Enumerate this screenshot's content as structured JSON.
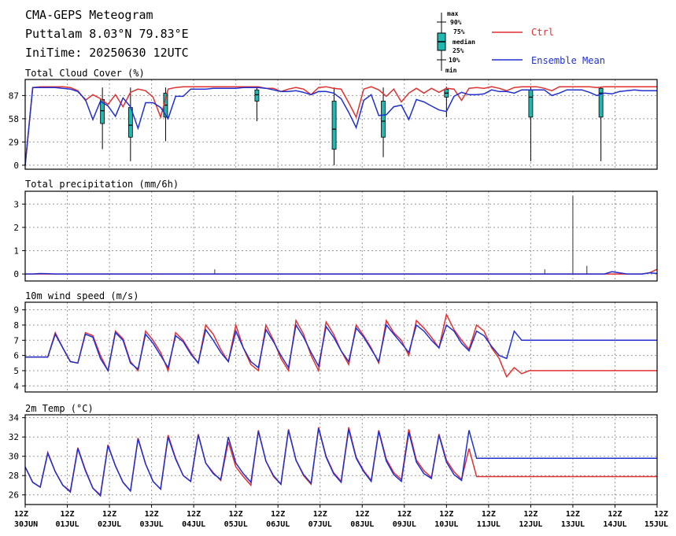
{
  "header": {
    "title": "CMA-GEPS Meteogram",
    "location": "Puttalam 8.03°N 79.83°E",
    "init_time": "IniTime: 20250630 12UTC"
  },
  "legend": {
    "box_labels": [
      "max",
      "90%",
      "75%",
      "median",
      "25%",
      "10%",
      "min"
    ],
    "ctrl_label": "Ctrl",
    "mean_label": "Ensemble Mean",
    "ctrl_color": "#e03030",
    "mean_color": "#2030d0",
    "box_color": "#20b8b0"
  },
  "chart_data": [
    {
      "type": "line",
      "title": "Total Cloud Cover (%)",
      "x_range": [
        0,
        90
      ],
      "ylim": [
        -5,
        107
      ],
      "yticks": [
        0,
        29,
        58,
        87
      ],
      "grid": true,
      "series": [
        {
          "name": "Ctrl",
          "values": [
            0,
            97,
            98,
            98,
            98,
            98,
            97,
            93,
            81,
            88,
            83,
            76,
            88,
            73,
            91,
            95,
            93,
            85,
            60,
            95,
            97,
            98,
            98,
            98,
            98,
            98,
            98,
            98,
            98,
            98,
            98,
            98,
            96,
            96,
            92,
            95,
            97,
            95,
            88,
            97,
            98,
            96,
            95,
            78,
            60,
            95,
            98,
            94,
            86,
            95,
            79,
            90,
            96,
            90,
            96,
            91,
            96,
            95,
            81,
            96,
            97,
            96,
            98,
            96,
            93,
            97,
            98,
            98,
            98,
            96,
            93,
            98,
            98,
            98,
            98,
            98,
            97,
            98,
            98,
            98,
            98,
            98,
            98,
            98,
            98
          ]
        },
        {
          "name": "Ensemble Mean",
          "values": [
            0,
            97,
            97,
            97,
            97,
            96,
            95,
            92,
            82,
            57,
            80,
            74,
            61,
            84,
            73,
            46,
            78,
            78,
            72,
            58,
            86,
            86,
            95,
            95,
            95,
            96,
            96,
            96,
            96,
            97,
            97,
            97,
            96,
            94,
            92,
            92,
            93,
            91,
            88,
            92,
            92,
            90,
            83,
            66,
            47,
            81,
            88,
            62,
            63,
            73,
            75,
            57,
            82,
            79,
            74,
            69,
            67,
            86,
            91,
            88,
            88,
            89,
            94,
            92,
            92,
            90,
            94,
            94,
            94,
            94,
            87,
            90,
            94,
            94,
            94,
            91,
            87,
            90,
            89,
            92,
            93,
            94,
            93,
            93,
            93
          ]
        }
      ],
      "boxes": [
        {
          "i": 11,
          "min": 20,
          "p10": 38,
          "p25": 52,
          "median": 68,
          "p75": 82,
          "p90": 93,
          "max": 97
        },
        {
          "i": 15,
          "min": 5,
          "p10": 20,
          "p25": 35,
          "median": 50,
          "p75": 72,
          "p90": 92,
          "max": 97
        },
        {
          "i": 20,
          "min": 30,
          "p10": 40,
          "p25": 60,
          "median": 75,
          "p75": 90,
          "p90": 96,
          "max": 97
        },
        {
          "i": 33,
          "min": 55,
          "p10": 70,
          "p25": 80,
          "median": 88,
          "p75": 94,
          "p90": 97,
          "max": 98
        },
        {
          "i": 44,
          "min": 0,
          "p10": 5,
          "p25": 20,
          "median": 45,
          "p75": 80,
          "p90": 95,
          "max": 97
        },
        {
          "i": 51,
          "min": 10,
          "p10": 20,
          "p25": 35,
          "median": 55,
          "p75": 80,
          "p90": 95,
          "max": 97
        },
        {
          "i": 60,
          "min": 60,
          "p10": 75,
          "p25": 85,
          "median": 90,
          "p75": 95,
          "p90": 97,
          "max": 98
        },
        {
          "i": 72,
          "min": 5,
          "p10": 20,
          "p25": 60,
          "median": 85,
          "p75": 94,
          "p90": 97,
          "max": 98
        },
        {
          "i": 82,
          "min": 5,
          "p10": 20,
          "p25": 60,
          "median": 90,
          "p75": 96,
          "p90": 97,
          "max": 98
        }
      ]
    },
    {
      "type": "line",
      "title": "Total precipitation (mm/6h)",
      "x_range": [
        0,
        90
      ],
      "ylim": [
        -0.3,
        3.55
      ],
      "yticks": [
        0,
        1,
        2,
        3
      ],
      "grid": true,
      "series": [
        {
          "name": "Ctrl",
          "values": [
            0,
            0,
            0,
            0,
            0,
            0,
            0,
            0,
            0,
            0,
            0,
            0,
            0,
            0,
            0,
            0,
            0,
            0,
            0,
            0,
            0,
            0,
            0,
            0,
            0,
            0,
            0,
            0,
            0,
            0,
            0,
            0,
            0,
            0,
            0,
            0,
            0,
            0,
            0,
            0,
            0,
            0,
            0,
            0,
            0,
            0,
            0,
            0,
            0,
            0,
            0,
            0,
            0,
            0,
            0,
            0,
            0,
            0,
            0,
            0,
            0,
            0,
            0,
            0,
            0,
            0,
            0,
            0,
            0,
            0,
            0,
            0,
            0,
            0,
            0,
            0,
            0,
            0,
            0,
            0,
            0,
            0,
            0,
            0.05,
            0.2
          ]
        },
        {
          "name": "Ensemble Mean",
          "values": [
            0,
            0,
            0.02,
            0.01,
            0,
            0,
            0,
            0,
            0,
            0,
            0,
            0,
            0,
            0,
            0,
            0,
            0,
            0,
            0,
            0,
            0,
            0,
            0,
            0,
            0,
            0,
            0,
            0,
            0,
            0,
            0,
            0,
            0,
            0,
            0,
            0,
            0,
            0,
            0,
            0,
            0,
            0,
            0,
            0,
            0,
            0,
            0,
            0,
            0,
            0,
            0,
            0,
            0,
            0,
            0,
            0,
            0,
            0,
            0,
            0,
            0,
            0,
            0,
            0,
            0,
            0,
            0,
            0,
            0,
            0,
            0,
            0,
            0,
            0,
            0,
            0,
            0,
            0,
            0.1,
            0.05,
            0,
            0,
            0,
            0.05,
            0.02
          ]
        }
      ],
      "spikes": [
        {
          "i": 78,
          "max": 3.35
        },
        {
          "i": 80,
          "max": 0.35
        },
        {
          "i": 27,
          "max": 0.2
        },
        {
          "i": 74,
          "max": 0.2
        }
      ]
    },
    {
      "type": "line",
      "title": "10m wind speed (m/s)",
      "x_range": [
        0,
        90
      ],
      "ylim": [
        3.6,
        9.5
      ],
      "yticks": [
        4,
        5,
        6,
        7,
        8,
        9
      ],
      "grid": true,
      "series": [
        {
          "name": "Ctrl",
          "values": [
            5.9,
            5.9,
            5.9,
            5.9,
            7.5,
            6.5,
            5.6,
            5.5,
            7.5,
            7.3,
            6.0,
            5.0,
            7.6,
            7.1,
            5.6,
            5.0,
            7.6,
            7.0,
            6.2,
            5.0,
            7.5,
            7.0,
            6.2,
            5.5,
            8.0,
            7.4,
            6.4,
            5.6,
            8.0,
            6.5,
            5.4,
            5.0,
            8.0,
            7.0,
            5.8,
            5.0,
            8.3,
            7.4,
            6.0,
            5.0,
            8.2,
            7.4,
            6.3,
            5.4,
            8.0,
            7.3,
            6.5,
            5.5,
            8.3,
            7.5,
            7.0,
            6.0,
            8.3,
            7.8,
            7.2,
            6.5,
            8.7,
            7.7,
            7.0,
            6.4,
            8.0,
            7.6,
            6.5,
            5.8,
            4.6,
            5.2,
            4.8,
            5.0,
            5.0,
            5.0,
            5.0,
            5.0,
            5.0,
            5.0,
            5.0,
            5.0,
            5.0,
            5.0,
            5.0,
            5.0,
            5.0,
            5.0,
            5.0,
            5.0,
            5.0
          ]
        },
        {
          "name": "Ensemble Mean",
          "values": [
            5.9,
            5.9,
            5.9,
            5.9,
            7.4,
            6.5,
            5.6,
            5.5,
            7.4,
            7.2,
            5.8,
            5.0,
            7.5,
            7.0,
            5.5,
            5.1,
            7.4,
            6.8,
            6.0,
            5.2,
            7.3,
            6.9,
            6.1,
            5.5,
            7.7,
            7.0,
            6.2,
            5.6,
            7.6,
            6.5,
            5.6,
            5.2,
            7.7,
            6.9,
            6.0,
            5.2,
            8.0,
            7.2,
            6.2,
            5.3,
            7.9,
            7.2,
            6.3,
            5.6,
            7.8,
            7.2,
            6.4,
            5.6,
            8.0,
            7.4,
            6.8,
            6.2,
            8.0,
            7.6,
            7.0,
            6.5,
            8.0,
            7.6,
            6.8,
            6.3,
            7.6,
            7.3,
            6.6,
            6.0,
            5.8,
            7.6,
            7.0,
            7.0,
            7.0,
            7.0,
            7.0,
            7.0,
            7.0,
            7.0,
            7.0,
            7.0,
            7.0,
            7.0,
            7.0,
            7.0,
            7.0,
            7.0,
            7.0,
            7.0,
            7.0
          ]
        }
      ]
    },
    {
      "type": "line",
      "title": "2m Temp (°C)",
      "x_range": [
        0,
        90
      ],
      "ylim": [
        25,
        34.3
      ],
      "yticks": [
        26,
        28,
        30,
        32,
        34
      ],
      "grid": true,
      "series": [
        {
          "name": "Ctrl",
          "values": [
            28.9,
            27.3,
            26.8,
            30.4,
            28.4,
            27.0,
            26.4,
            30.9,
            28.6,
            26.7,
            26.0,
            31.2,
            29.0,
            27.3,
            26.4,
            31.9,
            29.2,
            27.4,
            26.6,
            32.2,
            29.8,
            28.0,
            27.4,
            32.3,
            29.3,
            28.3,
            27.5,
            31.5,
            28.9,
            27.9,
            27.0,
            32.7,
            29.5,
            27.9,
            27.1,
            32.8,
            29.6,
            28.0,
            27.1,
            33.0,
            30.0,
            28.3,
            27.4,
            33.0,
            29.9,
            28.5,
            27.5,
            32.7,
            29.7,
            28.3,
            27.6,
            32.8,
            29.6,
            28.5,
            27.8,
            32.3,
            29.6,
            28.4,
            27.6,
            30.8,
            27.9,
            27.9,
            27.9,
            27.9,
            27.9,
            27.9,
            27.9,
            27.9,
            27.9,
            27.9,
            27.9,
            27.9,
            27.9,
            27.9,
            27.9,
            27.9,
            27.9,
            27.9,
            27.9,
            27.9,
            27.9,
            27.9,
            27.9,
            27.9,
            27.9
          ]
        },
        {
          "name": "Ensemble Mean",
          "values": [
            28.9,
            27.3,
            26.8,
            30.3,
            28.4,
            27.0,
            26.3,
            30.8,
            28.5,
            26.7,
            25.9,
            31.1,
            29.0,
            27.3,
            26.4,
            31.8,
            29.2,
            27.4,
            26.6,
            32.0,
            29.7,
            28.0,
            27.4,
            32.2,
            29.3,
            28.2,
            27.6,
            32.0,
            29.3,
            28.2,
            27.3,
            32.6,
            29.5,
            28.0,
            27.1,
            32.7,
            29.6,
            28.1,
            27.2,
            32.9,
            29.9,
            28.2,
            27.3,
            32.8,
            29.8,
            28.4,
            27.4,
            32.6,
            29.5,
            28.1,
            27.4,
            32.5,
            29.4,
            28.2,
            27.7,
            32.2,
            29.4,
            28.1,
            27.5,
            32.7,
            29.8,
            29.8,
            29.8,
            29.8,
            29.8,
            29.8,
            29.8,
            29.8,
            29.8,
            29.8,
            29.8,
            29.8,
            29.8,
            29.8,
            29.8,
            29.8,
            29.8,
            29.8,
            29.8,
            29.8,
            29.8,
            29.8,
            29.8,
            29.8,
            29.8
          ]
        }
      ]
    }
  ],
  "x_axis": {
    "hour_label": "12Z",
    "dates": [
      "30JUN",
      "01JUL",
      "02JUL",
      "03JUL",
      "04JUL",
      "05JUL",
      "06JUL",
      "07JUL",
      "08JUL",
      "09JUL",
      "10JUL",
      "11JUL",
      "12JUL",
      "13JUL",
      "14JUL",
      "15JUL"
    ]
  }
}
